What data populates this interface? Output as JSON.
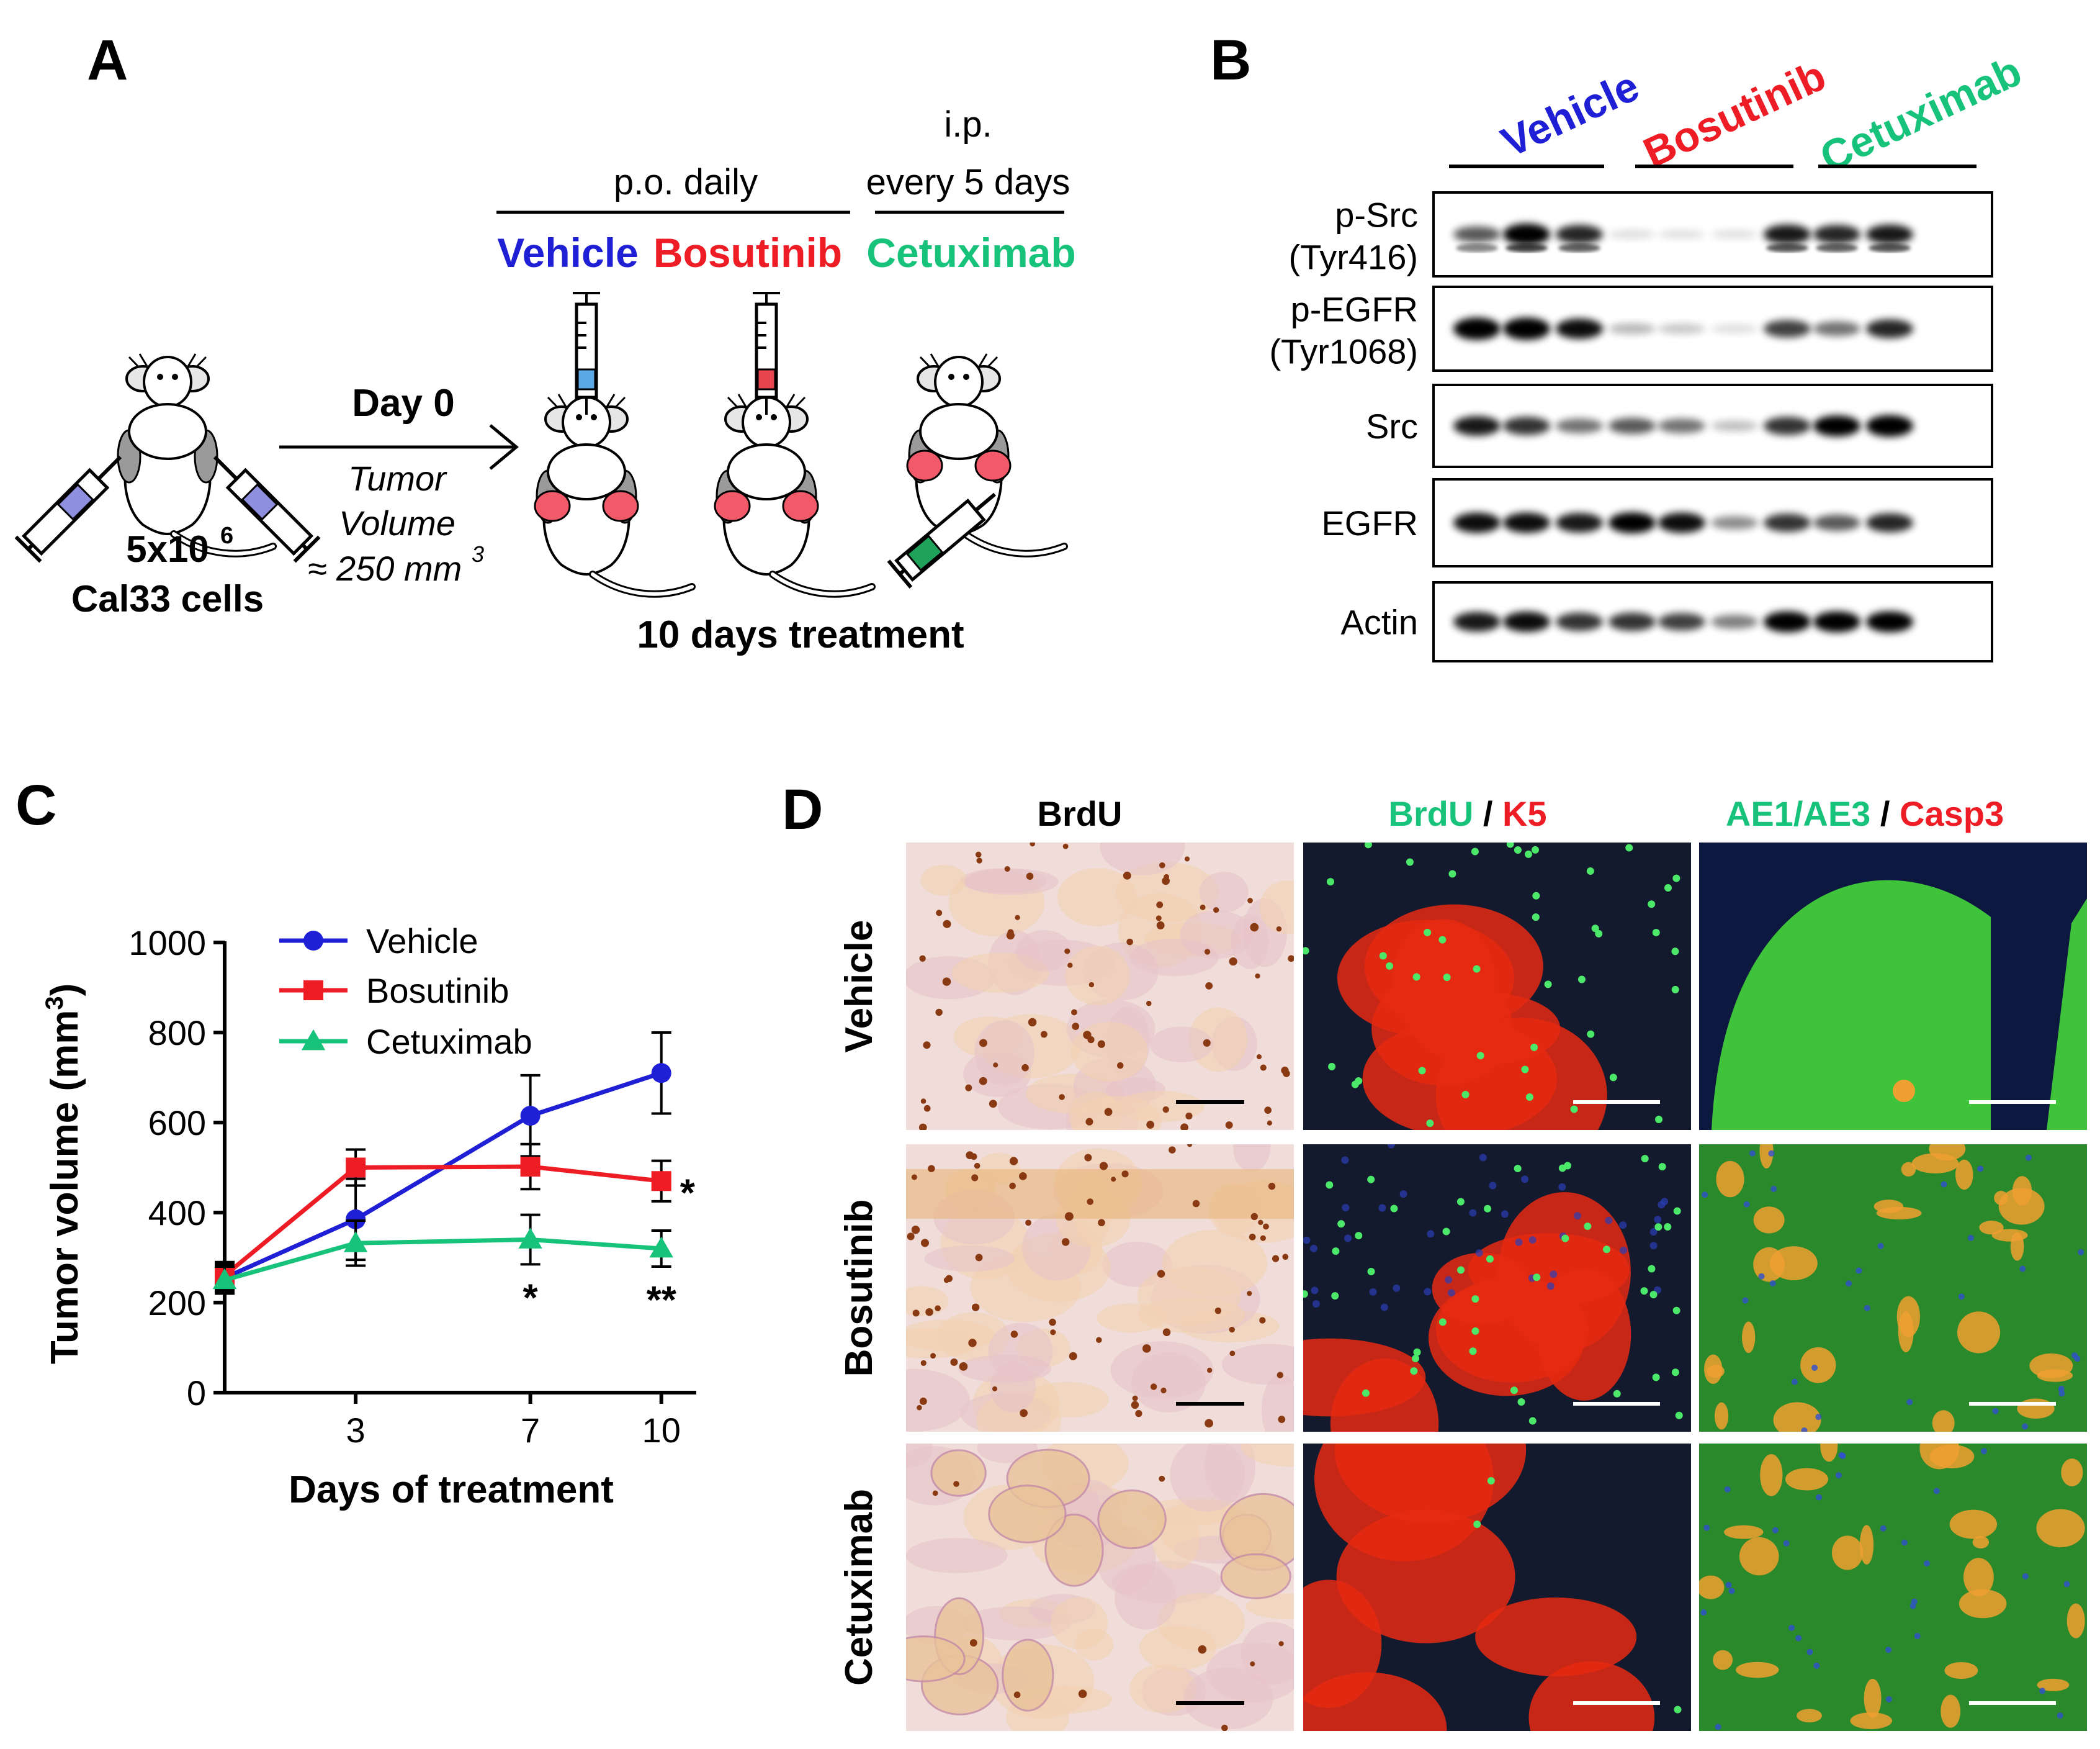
{
  "colors": {
    "vehicle": "#1f1fd6",
    "bosutinib": "#ee1c25",
    "cetuximab": "#17c37b",
    "tumor": "#f25a6a"
  },
  "panelA": {
    "label": "A",
    "po_daily": "p.o. daily",
    "ip": "i.p.",
    "every5": "every 5 days",
    "vehicle": "Vehicle",
    "bosutinib": "Bosutinib",
    "cetuximab": "Cetuximab",
    "day0": "Day 0",
    "tumor": "Tumor",
    "volume": "Volume",
    "vol_value": "≈ 250 mm",
    "vol_sup": "3",
    "cells_count": "5x10",
    "cells_sup": "6",
    "cells_name": "Cal33 cells",
    "treatment": "10 days treatment"
  },
  "panelB": {
    "label": "B",
    "groups": [
      "Vehicle",
      "Bosutinib",
      "Cetuximab"
    ],
    "rows": [
      {
        "line1": "p-Src",
        "line2": "(Tyr416)"
      },
      {
        "line1": "p-EGFR",
        "line2": "(Tyr1068)"
      },
      {
        "line1": "Src",
        "line2": ""
      },
      {
        "line1": "EGFR",
        "line2": ""
      },
      {
        "line1": "Actin",
        "line2": ""
      }
    ],
    "intensity": [
      [
        0.55,
        0.95,
        0.75,
        0.03,
        0.02,
        0.02,
        0.8,
        0.75,
        0.8
      ],
      [
        1.0,
        1.0,
        0.85,
        0.18,
        0.12,
        0.03,
        0.65,
        0.45,
        0.75
      ],
      [
        0.8,
        0.7,
        0.45,
        0.55,
        0.45,
        0.15,
        0.7,
        0.9,
        0.95
      ],
      [
        0.85,
        0.85,
        0.8,
        0.9,
        0.85,
        0.35,
        0.7,
        0.55,
        0.75
      ],
      [
        0.8,
        0.85,
        0.7,
        0.7,
        0.65,
        0.4,
        0.9,
        0.9,
        0.9
      ]
    ]
  },
  "panelC": {
    "label": "C"
  },
  "chart_data": {
    "type": "line",
    "xlabel": "Days of treatment",
    "ylabel": "Tumor volume (mm",
    "ylabel_sup": "3",
    "ylabel_close": ")",
    "ylim": [
      0,
      1000
    ],
    "yticks": [
      0,
      200,
      400,
      600,
      800,
      1000
    ],
    "xticks": [
      3,
      7,
      10
    ],
    "x": [
      0,
      3,
      7,
      10
    ],
    "legend_position": "top-left",
    "series": [
      {
        "name": "Vehicle",
        "marker": "circle",
        "values": [
          255,
          385,
          615,
          710
        ],
        "errors": [
          30,
          90,
          90,
          90
        ]
      },
      {
        "name": "Bosutinib",
        "marker": "square",
        "values": [
          260,
          500,
          502,
          470
        ],
        "errors": [
          30,
          40,
          50,
          45
        ]
      },
      {
        "name": "Cetuximab",
        "marker": "triangle",
        "values": [
          250,
          332,
          340,
          320
        ],
        "errors": [
          30,
          50,
          55,
          40
        ]
      }
    ],
    "annotations": [
      {
        "text": "*",
        "x": 10,
        "near": "Bosutinib"
      },
      {
        "text": "*",
        "x": 7,
        "near": "Cetuximab"
      },
      {
        "text": "**",
        "x": 10,
        "near": "Cetuximab"
      }
    ]
  },
  "panelD": {
    "label": "D",
    "col1": "BrdU",
    "col2": {
      "a": "BrdU",
      "sep": " / ",
      "b": "K5"
    },
    "col3": {
      "a": "AE1/AE3",
      "sep": " / ",
      "b": "Casp3"
    },
    "rows": [
      "Vehicle",
      "Bosutinib",
      "Cetuximab"
    ]
  }
}
